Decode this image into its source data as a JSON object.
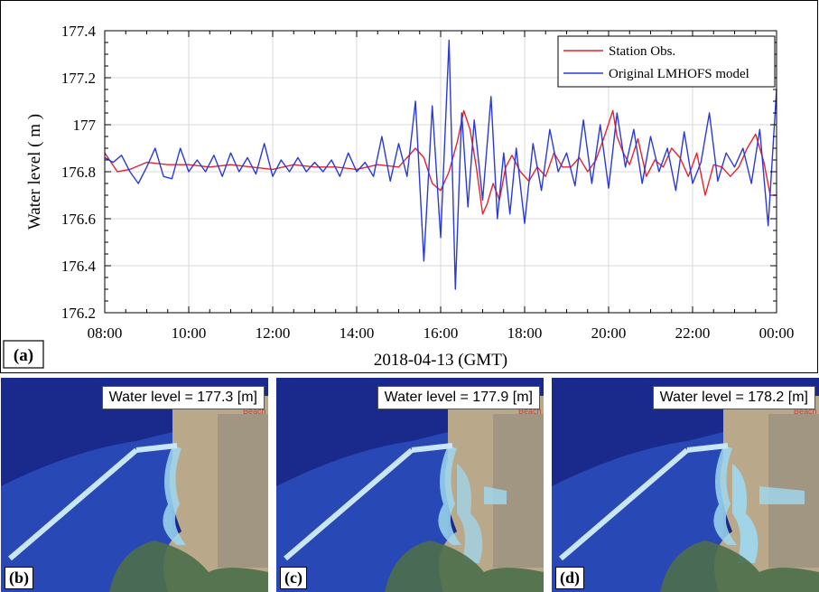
{
  "chart_data": {
    "type": "line",
    "xlabel": "2018-04-13 (GMT)",
    "ylabel": "Water level ( m )",
    "x_ticks": [
      "08:00",
      "10:00",
      "12:00",
      "14:00",
      "16:00",
      "18:00",
      "20:00",
      "22:00",
      "00:00"
    ],
    "x_range_hours": [
      8,
      24
    ],
    "ylim": [
      176.2,
      177.4
    ],
    "y_ticks": [
      "176.2",
      "176.4",
      "176.6",
      "176.8",
      "177",
      "177.2",
      "177.4"
    ],
    "grid": true,
    "legend_position": "top-right",
    "panel_label": "(a)",
    "series": [
      {
        "name": "Station Obs.",
        "color": "#e8222a",
        "x_hours": [
          8.0,
          8.3,
          8.6,
          9.0,
          9.5,
          10.0,
          10.5,
          11.0,
          11.5,
          12.0,
          12.5,
          13.0,
          13.5,
          14.0,
          14.5,
          15.0,
          15.4,
          15.6,
          15.8,
          16.0,
          16.2,
          16.4,
          16.55,
          16.7,
          16.85,
          17.0,
          17.1,
          17.25,
          17.4,
          17.55,
          17.7,
          17.9,
          18.1,
          18.3,
          18.5,
          18.7,
          18.9,
          19.1,
          19.3,
          19.5,
          19.7,
          19.9,
          20.1,
          20.2,
          20.35,
          20.5,
          20.7,
          20.9,
          21.1,
          21.3,
          21.5,
          21.7,
          21.9,
          22.1,
          22.3,
          22.5,
          22.7,
          22.9,
          23.1,
          23.3,
          23.5,
          23.7,
          23.85,
          24.0
        ],
        "values": [
          176.88,
          176.8,
          176.81,
          176.84,
          176.83,
          176.83,
          176.82,
          176.83,
          176.82,
          176.81,
          176.83,
          176.82,
          176.82,
          176.81,
          176.83,
          176.82,
          176.9,
          176.86,
          176.75,
          176.72,
          176.8,
          176.93,
          177.06,
          176.98,
          176.82,
          176.62,
          176.66,
          176.75,
          176.68,
          176.82,
          176.87,
          176.8,
          176.76,
          176.82,
          176.78,
          176.88,
          176.82,
          176.82,
          176.86,
          176.8,
          176.85,
          176.95,
          177.06,
          176.95,
          176.88,
          176.83,
          176.94,
          176.78,
          176.85,
          176.82,
          176.9,
          176.86,
          176.78,
          176.88,
          176.7,
          176.83,
          176.82,
          176.78,
          176.82,
          176.9,
          176.96,
          176.84,
          176.7,
          176.7
        ]
      },
      {
        "name": "Original LMHOFS model",
        "color": "#2a39d8",
        "x_hours": [
          8.0,
          8.2,
          8.4,
          8.6,
          8.8,
          9.0,
          9.2,
          9.4,
          9.6,
          9.8,
          10.0,
          10.2,
          10.4,
          10.6,
          10.8,
          11.0,
          11.2,
          11.4,
          11.6,
          11.8,
          12.0,
          12.2,
          12.4,
          12.6,
          12.8,
          13.0,
          13.2,
          13.4,
          13.6,
          13.8,
          14.0,
          14.2,
          14.4,
          14.6,
          14.8,
          15.0,
          15.2,
          15.4,
          15.6,
          15.8,
          16.0,
          16.2,
          16.35,
          16.5,
          16.65,
          16.8,
          17.0,
          17.2,
          17.35,
          17.5,
          17.65,
          17.8,
          18.0,
          18.2,
          18.4,
          18.6,
          18.8,
          19.0,
          19.2,
          19.4,
          19.6,
          19.8,
          20.0,
          20.2,
          20.4,
          20.6,
          20.8,
          21.0,
          21.2,
          21.4,
          21.6,
          21.8,
          22.0,
          22.2,
          22.4,
          22.6,
          22.8,
          23.0,
          23.2,
          23.4,
          23.6,
          23.8,
          24.0
        ],
        "values": [
          176.86,
          176.84,
          176.87,
          176.8,
          176.75,
          176.82,
          176.9,
          176.78,
          176.77,
          176.9,
          176.8,
          176.85,
          176.8,
          176.87,
          176.78,
          176.88,
          176.8,
          176.86,
          176.79,
          176.92,
          176.78,
          176.85,
          176.8,
          176.86,
          176.8,
          176.84,
          176.8,
          176.85,
          176.78,
          176.88,
          176.8,
          176.84,
          176.78,
          176.95,
          176.76,
          176.92,
          176.78,
          177.1,
          176.42,
          177.08,
          176.52,
          177.36,
          176.3,
          177.05,
          176.65,
          177.02,
          176.68,
          177.12,
          176.6,
          176.88,
          176.62,
          176.9,
          176.58,
          176.92,
          176.72,
          176.98,
          176.8,
          176.88,
          176.74,
          177.02,
          176.75,
          177.0,
          176.73,
          177.05,
          176.82,
          176.98,
          176.75,
          176.95,
          176.8,
          176.9,
          176.72,
          176.97,
          176.75,
          176.84,
          177.05,
          176.76,
          176.88,
          176.82,
          176.9,
          176.75,
          176.98,
          176.57,
          177.15
        ]
      }
    ]
  },
  "maps": [
    {
      "label": "(b)",
      "water_level_text": "Water level = 177.3 [m]",
      "beach_text": "Beach"
    },
    {
      "label": "(c)",
      "water_level_text": "Water level = 177.9 [m]",
      "beach_text": "Beach"
    },
    {
      "label": "(d)",
      "water_level_text": "Water level = 178.2 [m]",
      "beach_text": "Beach"
    }
  ],
  "colors": {
    "water_deep": "#1a2a8c",
    "water_mid": "#2f56c8",
    "water_shallow": "#9fd8f0",
    "land": "#b9a98a",
    "vegetation": "#4d6e4a"
  }
}
